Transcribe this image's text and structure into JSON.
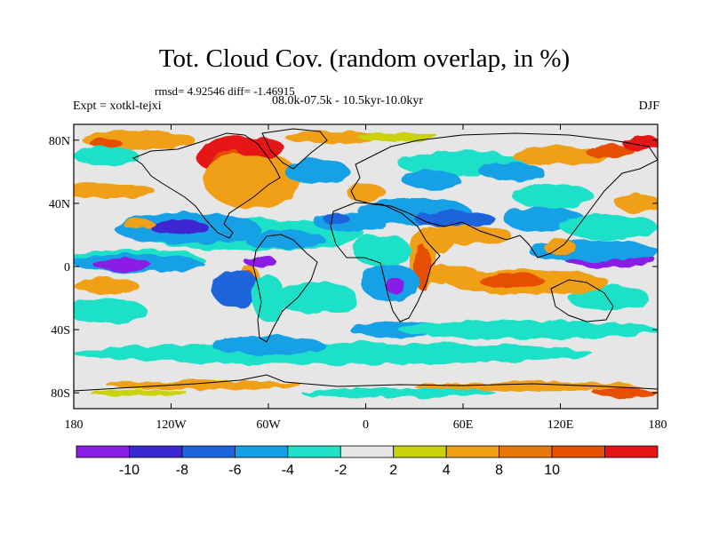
{
  "title": "Tot. Cloud Cov. (random overlap, in %)",
  "stats": "rmsd= 4.92546 diff= -1.46915",
  "experiment": "Expt = xotkl-tejxi",
  "period": "08.0k-07.5k - 10.5kyr-10.0kyr",
  "season": "DJF",
  "axes": {
    "lat_ticks": [
      {
        "label": "80N",
        "lat": 80
      },
      {
        "label": "40N",
        "lat": 40
      },
      {
        "label": "0",
        "lat": 0
      },
      {
        "label": "40S",
        "lat": -40
      },
      {
        "label": "80S",
        "lat": -80
      }
    ],
    "lon_ticks": [
      {
        "label": "180",
        "lon": -180
      },
      {
        "label": "120W",
        "lon": -120
      },
      {
        "label": "60W",
        "lon": -60
      },
      {
        "label": "0",
        "lon": 0
      },
      {
        "label": "60E",
        "lon": 60
      },
      {
        "label": "120E",
        "lon": 120
      },
      {
        "label": "180",
        "lon": 180
      }
    ]
  },
  "colorbar": {
    "colors": [
      "#8b1ee6",
      "#3c28d2",
      "#1e64dc",
      "#14a0e6",
      "#1ee1c8",
      "#e6e6e6",
      "#c8d20a",
      "#f0a014",
      "#e6780a",
      "#e65000",
      "#e61414"
    ],
    "labels": [
      "-10",
      "-8",
      "-6",
      "-4",
      "-2",
      "2",
      "4",
      "8",
      "10"
    ]
  },
  "map_regions": [
    {
      "color": "#1ee1c8",
      "lon": -70,
      "lat": 20,
      "rx": 70,
      "ry": 10
    },
    {
      "color": "#1ee1c8",
      "lon": -140,
      "lat": 5,
      "rx": 40,
      "ry": 6
    },
    {
      "color": "#14a0e6",
      "lon": -110,
      "lat": 24,
      "rx": 45,
      "ry": 10
    },
    {
      "color": "#3c28d2",
      "lon": -115,
      "lat": 25,
      "rx": 18,
      "ry": 5
    },
    {
      "color": "#14a0e6",
      "lon": -50,
      "lat": 17,
      "rx": 25,
      "ry": 6
    },
    {
      "color": "#14a0e6",
      "lon": -140,
      "lat": 2,
      "rx": 40,
      "ry": 6
    },
    {
      "color": "#8b1ee6",
      "lon": -150,
      "lat": 1,
      "rx": 18,
      "ry": 4
    },
    {
      "color": "#1ee1c8",
      "lon": -160,
      "lat": -28,
      "rx": 25,
      "ry": 8
    },
    {
      "color": "#f0a014",
      "lon": -160,
      "lat": -12,
      "rx": 20,
      "ry": 5
    },
    {
      "color": "#f0a014",
      "lon": -72,
      "lat": -9,
      "rx": 7,
      "ry": 10
    },
    {
      "color": "#e65000",
      "lon": -72,
      "lat": -8,
      "rx": 4,
      "ry": 5
    },
    {
      "color": "#f0a014",
      "lon": -160,
      "lat": 48,
      "rx": 30,
      "ry": 5
    },
    {
      "color": "#f0a014",
      "lon": -140,
      "lat": 27,
      "rx": 10,
      "ry": 3
    },
    {
      "color": "#14a0e6",
      "lon": -10,
      "lat": 28,
      "rx": 22,
      "ry": 6
    },
    {
      "color": "#1e64dc",
      "lon": -18,
      "lat": 30,
      "rx": 8,
      "ry": 4
    },
    {
      "color": "#1ee1c8",
      "lon": -30,
      "lat": -20,
      "rx": 25,
      "ry": 10
    },
    {
      "color": "#8b1ee6",
      "lon": -65,
      "lat": 3,
      "rx": 10,
      "ry": 3
    },
    {
      "color": "#8b1ee6",
      "lon": -80,
      "lat": -16,
      "rx": 10,
      "ry": 8
    },
    {
      "color": "#1e64dc",
      "lon": -80,
      "lat": -14,
      "rx": 15,
      "ry": 12
    },
    {
      "color": "#1ee1c8",
      "lon": -60,
      "lat": -20,
      "rx": 10,
      "ry": 15
    },
    {
      "color": "#1ee1c8",
      "lon": -20,
      "lat": -55,
      "rx": 160,
      "ry": 7
    },
    {
      "color": "#14a0e6",
      "lon": -60,
      "lat": -50,
      "rx": 35,
      "ry": 6
    },
    {
      "color": "#14a0e6",
      "lon": 20,
      "lat": -40,
      "rx": 30,
      "ry": 5
    },
    {
      "color": "#1ee1c8",
      "lon": 100,
      "lat": -40,
      "rx": 80,
      "ry": 6
    },
    {
      "color": "#1ee1c8",
      "lon": 150,
      "lat": -20,
      "rx": 25,
      "ry": 8
    },
    {
      "color": "#f0a014",
      "lon": 100,
      "lat": -10,
      "rx": 50,
      "ry": 8
    },
    {
      "color": "#e65000",
      "lon": 90,
      "lat": -9,
      "rx": 20,
      "ry": 5
    },
    {
      "color": "#f0a014",
      "lon": 50,
      "lat": -5,
      "rx": 20,
      "ry": 6
    },
    {
      "color": "#f0a014",
      "lon": 35,
      "lat": 5,
      "rx": 8,
      "ry": 20
    },
    {
      "color": "#e65000",
      "lon": 35,
      "lat": 0,
      "rx": 5,
      "ry": 15
    },
    {
      "color": "#14a0e6",
      "lon": 15,
      "lat": -10,
      "rx": 18,
      "ry": 12
    },
    {
      "color": "#8b1ee6",
      "lon": 18,
      "lat": -12,
      "rx": 6,
      "ry": 5
    },
    {
      "color": "#1ee1c8",
      "lon": 10,
      "lat": 10,
      "rx": 18,
      "ry": 10
    },
    {
      "color": "#14a0e6",
      "lon": 30,
      "lat": 35,
      "rx": 35,
      "ry": 8
    },
    {
      "color": "#1e64dc",
      "lon": 55,
      "lat": 30,
      "rx": 25,
      "ry": 5
    },
    {
      "color": "#f0a014",
      "lon": 60,
      "lat": 20,
      "rx": 30,
      "ry": 6
    },
    {
      "color": "#f0a014",
      "lon": 45,
      "lat": 15,
      "rx": 10,
      "ry": 6
    },
    {
      "color": "#14a0e6",
      "lon": 110,
      "lat": 30,
      "rx": 25,
      "ry": 8
    },
    {
      "color": "#1ee1c8",
      "lon": 115,
      "lat": 45,
      "rx": 25,
      "ry": 8
    },
    {
      "color": "#1ee1c8",
      "lon": 150,
      "lat": 25,
      "rx": 30,
      "ry": 8
    },
    {
      "color": "#8b1ee6",
      "lon": 150,
      "lat": 5,
      "rx": 28,
      "ry": 6
    },
    {
      "color": "#14a0e6",
      "lon": 140,
      "lat": 10,
      "rx": 40,
      "ry": 7
    },
    {
      "color": "#f0a014",
      "lon": 168,
      "lat": 40,
      "rx": 14,
      "ry": 6
    },
    {
      "color": "#f0a014",
      "lon": 120,
      "lat": 12,
      "rx": 10,
      "ry": 5
    },
    {
      "color": "#1ee1c8",
      "lon": 60,
      "lat": 65,
      "rx": 40,
      "ry": 8
    },
    {
      "color": "#14a0e6",
      "lon": 90,
      "lat": 60,
      "rx": 20,
      "ry": 6
    },
    {
      "color": "#f0a014",
      "lon": 120,
      "lat": 70,
      "rx": 30,
      "ry": 6
    },
    {
      "color": "#e65000",
      "lon": 150,
      "lat": 73,
      "rx": 15,
      "ry": 4
    },
    {
      "color": "#f0a014",
      "lon": -140,
      "lat": 80,
      "rx": 35,
      "ry": 6
    },
    {
      "color": "#e61414",
      "lon": -80,
      "lat": 70,
      "rx": 25,
      "ry": 12
    },
    {
      "color": "#e65000",
      "lon": -75,
      "lat": 60,
      "rx": 22,
      "ry": 15
    },
    {
      "color": "#f0a014",
      "lon": -70,
      "lat": 55,
      "rx": 30,
      "ry": 18
    },
    {
      "color": "#e61414",
      "lon": -65,
      "lat": 75,
      "rx": 15,
      "ry": 6
    },
    {
      "color": "#14a0e6",
      "lon": -30,
      "lat": 60,
      "rx": 20,
      "ry": 8
    },
    {
      "color": "#f0a014",
      "lon": -20,
      "lat": 82,
      "rx": 30,
      "ry": 4
    },
    {
      "color": "#c8d20a",
      "lon": 20,
      "lat": 82,
      "rx": 25,
      "ry": 3
    },
    {
      "color": "#e61414",
      "lon": 170,
      "lat": 78,
      "rx": 12,
      "ry": 5
    },
    {
      "color": "#1ee1c8",
      "lon": -160,
      "lat": 70,
      "rx": 20,
      "ry": 6
    },
    {
      "color": "#e65000",
      "lon": -160,
      "lat": 78,
      "rx": 10,
      "ry": 3
    },
    {
      "color": "#f0a014",
      "lon": -100,
      "lat": -75,
      "rx": 60,
      "ry": 3
    },
    {
      "color": "#f0a014",
      "lon": 100,
      "lat": -76,
      "rx": 70,
      "ry": 3
    },
    {
      "color": "#e65000",
      "lon": 160,
      "lat": -80,
      "rx": 20,
      "ry": 3
    },
    {
      "color": "#c8d20a",
      "lon": -140,
      "lat": -80,
      "rx": 30,
      "ry": 2
    },
    {
      "color": "#1ee1c8",
      "lon": 20,
      "lat": -80,
      "rx": 60,
      "ry": 3
    },
    {
      "color": "#f0a014",
      "lon": 0,
      "lat": 47,
      "rx": 12,
      "ry": 6
    },
    {
      "color": "#14a0e6",
      "lon": 40,
      "lat": 55,
      "rx": 18,
      "ry": 6
    }
  ]
}
